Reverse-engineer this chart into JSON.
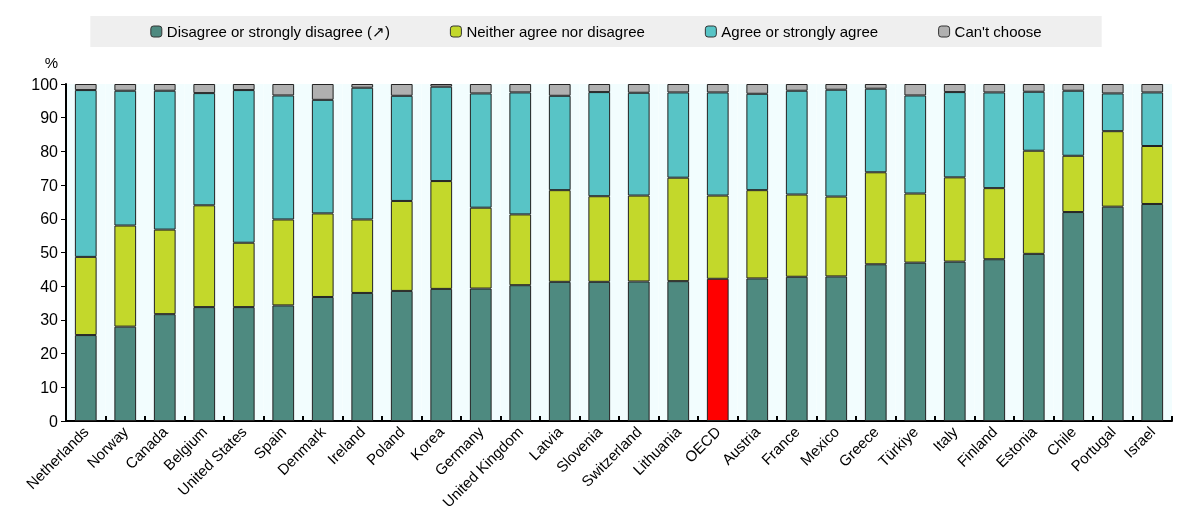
{
  "chart_data": {
    "type": "bar",
    "stacked": true,
    "ylabel": "%",
    "ylim": [
      0,
      100
    ],
    "yticks": [
      0,
      10,
      20,
      30,
      40,
      50,
      60,
      70,
      80,
      90,
      100
    ],
    "legend": "top",
    "categories": [
      "Netherlands",
      "Norway",
      "Canada",
      "Belgium",
      "United States",
      "Spain",
      "Denmark",
      "Ireland",
      "Poland",
      "Korea",
      "Germany",
      "United Kingdom",
      "Latvia",
      "Slovenia",
      "Switzerland",
      "Lithuania",
      "OECD",
      "Austria",
      "France",
      "Mexico",
      "Greece",
      "Türkiye",
      "Italy",
      "Finland",
      "Estonia",
      "Chile",
      "Portugal",
      "Israel"
    ],
    "series": [
      {
        "name": "Disagree or strongly disagree (↗)",
        "color": "#4e8a80",
        "colors": [
          "#4e8a80",
          "#4e8a80",
          "#4e8a80",
          "#4e8a80",
          "#4e8a80",
          "#4e8a80",
          "#4e8a80",
          "#4e8a80",
          "#4e8a80",
          "#4e8a80",
          "#4e8a80",
          "#4e8a80",
          "#4e8a80",
          "#4e8a80",
          "#4e8a80",
          "#4e8a80",
          "#ff0000",
          "#4e8a80",
          "#4e8a80",
          "#4e8a80",
          "#4e8a80",
          "#4e8a80",
          "#4e8a80",
          "#4e8a80",
          "#4e8a80",
          "#4e8a80",
          "#4e8a80",
          "#4e8a80"
        ],
        "values": [
          25.5,
          28,
          31.7,
          33.8,
          33.8,
          34.3,
          36.8,
          38,
          38.6,
          39.2,
          39.3,
          40.3,
          41.3,
          41.3,
          41.4,
          41.5,
          42.2,
          42.3,
          42.8,
          42.9,
          46.5,
          47,
          47.3,
          48,
          49.6,
          62,
          63.6,
          64.4
        ]
      },
      {
        "name": "Neither agree nor disagree",
        "color": "#c3d82b",
        "values": [
          23.2,
          30,
          25.1,
          30.2,
          19.1,
          25.5,
          24.8,
          21.8,
          26.7,
          32,
          24,
          21,
          27.2,
          25.4,
          25.5,
          30.7,
          24.7,
          26.2,
          24.4,
          23.7,
          27.3,
          20.5,
          25,
          21.1,
          30.6,
          16.7,
          22.4,
          17.2
        ]
      },
      {
        "name": "Agree or strongly agree",
        "color": "#58c4c6",
        "values": [
          49.5,
          40,
          41.2,
          33.3,
          45.3,
          36.8,
          33.7,
          39.1,
          31.2,
          28,
          33.9,
          36.2,
          28,
          30.9,
          30.5,
          25.3,
          30.6,
          28.6,
          30.8,
          31.7,
          24.8,
          29.1,
          25.3,
          28.4,
          17.5,
          19.3,
          11.2,
          15.9
        ]
      },
      {
        "name": "Can't choose",
        "color": "#b0b0b0",
        "values": [
          1.8,
          2,
          2,
          2.7,
          1.8,
          3.4,
          4.7,
          1.1,
          3.5,
          0.8,
          2.8,
          2.5,
          3.5,
          2.4,
          2.6,
          2.5,
          2.5,
          2.9,
          2,
          1.7,
          1.4,
          3.4,
          2.4,
          2.5,
          2.3,
          2,
          2.8,
          2.5
        ]
      }
    ]
  }
}
